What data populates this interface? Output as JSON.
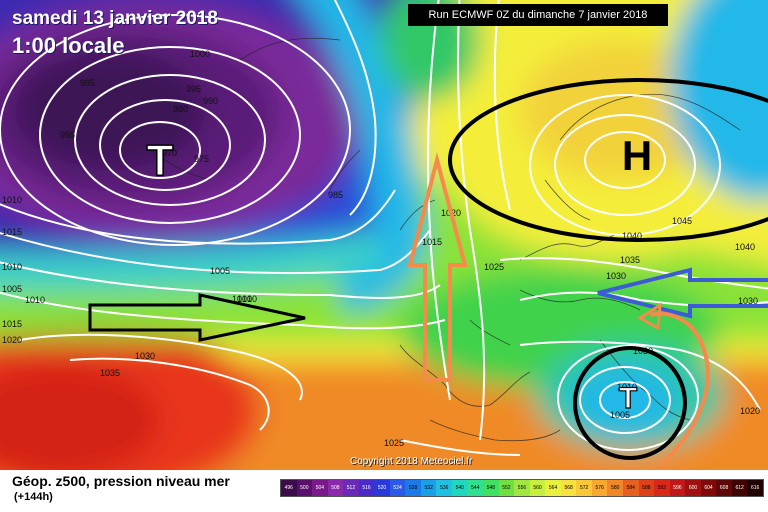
{
  "header": {
    "date": "samedi 13 janvier 2018",
    "time": "1:00 locale",
    "run": "Run ECMWF 0Z du dimanche 7 janvier 2018"
  },
  "footer": {
    "title": "Géop. z500, pression niveau mer",
    "subtitle": "(+144h)",
    "copyright": "Copyright 2018 Meteociel.fr"
  },
  "pressure_systems": [
    {
      "letter": "T",
      "color": "#ffffff",
      "style": "low-west"
    },
    {
      "letter": "H",
      "color": "#000000",
      "style": "high-north"
    },
    {
      "letter": "T",
      "color": "#ffffff",
      "style": "low-med"
    }
  ],
  "isobar_labels": [
    "1000",
    "995",
    "990",
    "985",
    "980",
    "975",
    "970",
    "995",
    "985",
    "1010",
    "1015",
    "1010",
    "1005",
    "1010",
    "1010",
    "1015",
    "1020",
    "1030",
    "1035",
    "1005",
    "1010",
    "1020",
    "1015",
    "1025",
    "1030",
    "1045",
    "1040",
    "1040",
    "1035",
    "1030",
    "1030",
    "1010",
    "1005",
    "1020",
    "1025"
  ],
  "arrows": [
    {
      "name": "black-arrow-east",
      "color": "#000000"
    },
    {
      "name": "orange-arrow-north",
      "color": "#f58a4a"
    },
    {
      "name": "blue-arrow-west",
      "color": "#3c5bd4"
    },
    {
      "name": "orange-arrow-curved",
      "color": "#f58a4a"
    }
  ],
  "colors": {
    "deep_purple": "#3c1656",
    "purple": "#7a2a9a",
    "blue": "#2f4fd8",
    "cyan": "#22b8e8",
    "green": "#3fd24b",
    "yellow": "#f4ee3a",
    "orange": "#f08a28",
    "red": "#e8341c"
  },
  "scale": [
    "496",
    "500",
    "504",
    "508",
    "512",
    "516",
    "520",
    "524",
    "528",
    "532",
    "536",
    "540",
    "544",
    "548",
    "552",
    "556",
    "560",
    "564",
    "568",
    "572",
    "576",
    "580",
    "584",
    "588",
    "592",
    "596",
    "600",
    "604",
    "608",
    "612",
    "616"
  ],
  "scale_colors": [
    "#3d0a4a",
    "#5a0f6a",
    "#7a1a8a",
    "#8a2aaa",
    "#6a2ab8",
    "#4a2ac8",
    "#2a3ad8",
    "#2a5ae8",
    "#1a7ae8",
    "#1aa0e8",
    "#20c0e0",
    "#20d8c0",
    "#30e090",
    "#40e060",
    "#70e040",
    "#a0e840",
    "#c8ee40",
    "#eaf040",
    "#f8e040",
    "#f8c838",
    "#f8a830",
    "#f08828",
    "#e86020",
    "#e04018",
    "#d82818",
    "#c01818",
    "#a01010",
    "#800a0a",
    "#600808",
    "#400404",
    "#200202"
  ]
}
